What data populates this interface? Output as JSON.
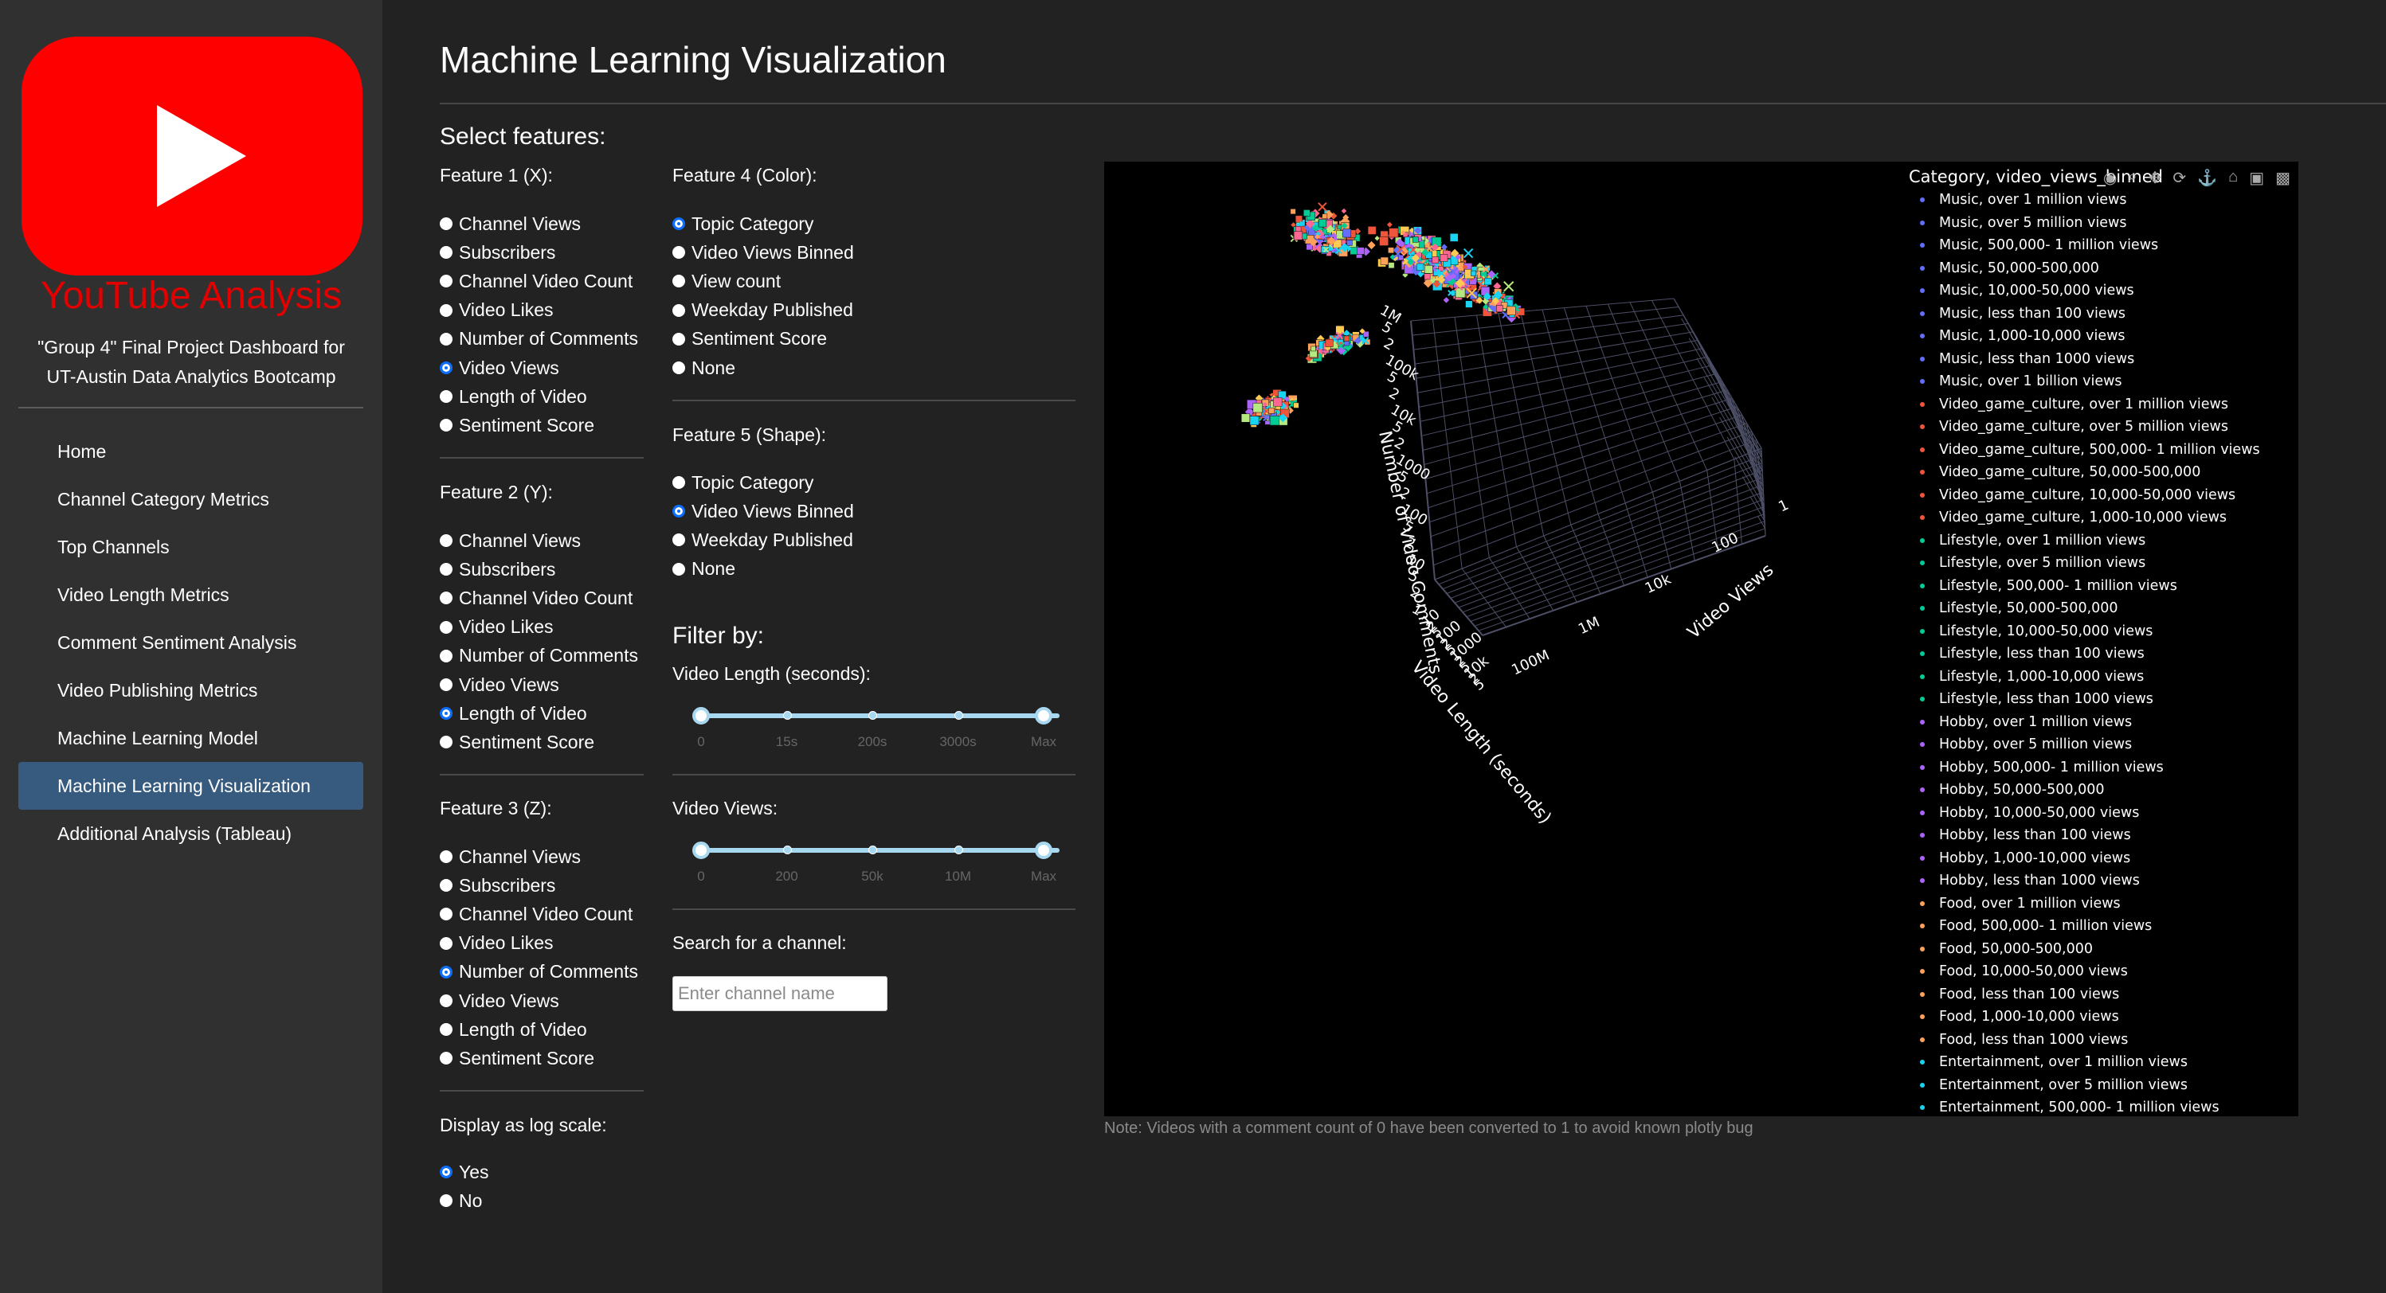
{
  "sidebar": {
    "brand": "YouTube Analysis",
    "tagline_line1": "\"Group 4\" Final Project Dashboard for",
    "tagline_line2": "UT-Austin Data Analytics Bootcamp",
    "logo_color": "#ff0000",
    "items": [
      {
        "label": "Home"
      },
      {
        "label": "Channel Category Metrics"
      },
      {
        "label": "Top Channels"
      },
      {
        "label": "Video Length Metrics"
      },
      {
        "label": "Comment Sentiment Analysis"
      },
      {
        "label": "Video Publishing Metrics"
      },
      {
        "label": "Machine Learning Model"
      },
      {
        "label": "Machine Learning Visualization",
        "active": true
      },
      {
        "label": "Additional Analysis (Tableau)"
      }
    ]
  },
  "main": {
    "title": "Machine Learning Visualization",
    "select_features": "Select features:",
    "feature1": {
      "label": "Feature 1 (X):",
      "options": [
        "Channel Views",
        "Subscribers",
        "Channel Video Count",
        "Video Likes",
        "Number of Comments",
        "Video Views",
        "Length of Video",
        "Sentiment Score"
      ],
      "selected": "Video Views"
    },
    "feature2": {
      "label": "Feature 2 (Y):",
      "options": [
        "Channel Views",
        "Subscribers",
        "Channel Video Count",
        "Video Likes",
        "Number of Comments",
        "Video Views",
        "Length of Video",
        "Sentiment Score"
      ],
      "selected": "Length of Video"
    },
    "feature3": {
      "label": "Feature 3 (Z):",
      "options": [
        "Channel Views",
        "Subscribers",
        "Channel Video Count",
        "Video Likes",
        "Number of Comments",
        "Video Views",
        "Length of Video",
        "Sentiment Score"
      ],
      "selected": "Number of Comments"
    },
    "log_scale": {
      "label": "Display as log scale:",
      "options": [
        "Yes",
        "No"
      ],
      "selected": "Yes"
    },
    "feature4": {
      "label": "Feature 4 (Color):",
      "options": [
        "Topic Category",
        "Video Views Binned",
        "View count",
        "Weekday Published",
        "Sentiment Score",
        "None"
      ],
      "selected": "Topic Category"
    },
    "feature5": {
      "label": "Feature 5 (Shape):",
      "options": [
        "Topic Category",
        "Video Views Binned",
        "Weekday Published",
        "None"
      ],
      "selected": "Video Views Binned"
    },
    "filter_by": "Filter by:",
    "length_filter": {
      "label": "Video Length (seconds):",
      "marks": [
        "0",
        "15s",
        "200s",
        "3000s",
        "Max"
      ],
      "range": [
        0,
        4
      ]
    },
    "views_filter": {
      "label": "Video Views:",
      "marks": [
        "0",
        "200",
        "50k",
        "10M",
        "Max"
      ],
      "range": [
        0,
        4
      ]
    },
    "search": {
      "label": "Search for a channel:",
      "placeholder": "Enter channel name",
      "value": ""
    },
    "note": "Note: Videos with a comment count of 0 have been converted to 1 to avoid known plotly bug"
  },
  "plot": {
    "modebar_icons": [
      "camera-icon",
      "zoom-icon",
      "pan-icon",
      "orbit-icon",
      "turntable-icon",
      "home-icon",
      "snapshot-icon",
      "plotly-logo-icon"
    ],
    "legend_title": "Category, video_views_binned",
    "legend": [
      {
        "label": "Music, over 1 million views",
        "color": "#636efa"
      },
      {
        "label": "Music, over 5 million views",
        "color": "#636efa"
      },
      {
        "label": "Music, 500,000- 1 million views",
        "color": "#636efa"
      },
      {
        "label": "Music, 50,000-500,000",
        "color": "#636efa"
      },
      {
        "label": "Music, 10,000-50,000 views",
        "color": "#636efa"
      },
      {
        "label": "Music, less than 100 views",
        "color": "#636efa"
      },
      {
        "label": "Music, 1,000-10,000 views",
        "color": "#636efa"
      },
      {
        "label": "Music, less than 1000 views",
        "color": "#636efa"
      },
      {
        "label": "Music, over 1 billion views",
        "color": "#636efa"
      },
      {
        "label": "Video_game_culture, over 1 million views",
        "color": "#ef553b"
      },
      {
        "label": "Video_game_culture, over 5 million views",
        "color": "#ef553b"
      },
      {
        "label": "Video_game_culture, 500,000- 1 million views",
        "color": "#ef553b"
      },
      {
        "label": "Video_game_culture, 50,000-500,000",
        "color": "#ef553b"
      },
      {
        "label": "Video_game_culture, 10,000-50,000 views",
        "color": "#ef553b"
      },
      {
        "label": "Video_game_culture, 1,000-10,000 views",
        "color": "#ef553b"
      },
      {
        "label": "Lifestyle, over 1 million views",
        "color": "#00cc96"
      },
      {
        "label": "Lifestyle, over 5 million views",
        "color": "#00cc96"
      },
      {
        "label": "Lifestyle, 500,000- 1 million views",
        "color": "#00cc96"
      },
      {
        "label": "Lifestyle, 50,000-500,000",
        "color": "#00cc96"
      },
      {
        "label": "Lifestyle, 10,000-50,000 views",
        "color": "#00cc96"
      },
      {
        "label": "Lifestyle, less than 100 views",
        "color": "#00cc96"
      },
      {
        "label": "Lifestyle, 1,000-10,000 views",
        "color": "#00cc96"
      },
      {
        "label": "Lifestyle, less than 1000 views",
        "color": "#00cc96"
      },
      {
        "label": "Hobby, over 1 million views",
        "color": "#ab63fa"
      },
      {
        "label": "Hobby, over 5 million views",
        "color": "#ab63fa"
      },
      {
        "label": "Hobby, 500,000- 1 million views",
        "color": "#ab63fa"
      },
      {
        "label": "Hobby, 50,000-500,000",
        "color": "#ab63fa"
      },
      {
        "label": "Hobby, 10,000-50,000 views",
        "color": "#ab63fa"
      },
      {
        "label": "Hobby, less than 100 views",
        "color": "#ab63fa"
      },
      {
        "label": "Hobby, 1,000-10,000 views",
        "color": "#ab63fa"
      },
      {
        "label": "Hobby, less than 1000 views",
        "color": "#ab63fa"
      },
      {
        "label": "Food, over 1 million views",
        "color": "#ffa15a"
      },
      {
        "label": "Food, 500,000- 1 million views",
        "color": "#ffa15a"
      },
      {
        "label": "Food, 50,000-500,000",
        "color": "#ffa15a"
      },
      {
        "label": "Food, 10,000-50,000 views",
        "color": "#ffa15a"
      },
      {
        "label": "Food, less than 100 views",
        "color": "#ffa15a"
      },
      {
        "label": "Food, 1,000-10,000 views",
        "color": "#ffa15a"
      },
      {
        "label": "Food, less than 1000 views",
        "color": "#ffa15a"
      },
      {
        "label": "Entertainment, over 1 million views",
        "color": "#19d3f3"
      },
      {
        "label": "Entertainment, over 5 million views",
        "color": "#19d3f3"
      },
      {
        "label": "Entertainment, 500,000- 1 million views",
        "color": "#19d3f3"
      }
    ],
    "axes": {
      "z_title": "Number of Video Comments",
      "y_title": "Video Length (seconds)",
      "x_title": "Video Views",
      "z_ticks": [
        "1M",
        "5",
        "2",
        "100k",
        "5",
        "2",
        "10k",
        "5",
        "2",
        "1000",
        "5",
        "2",
        "100",
        "5",
        "2",
        "10",
        "5",
        "2",
        "1"
      ],
      "y_ticks": [
        "10",
        "2",
        "5",
        "100",
        "2",
        "5",
        "1000",
        "2",
        "5",
        "10k",
        "2",
        "5"
      ],
      "x_ticks": [
        "1",
        "100",
        "10k",
        "1M",
        "100M"
      ]
    }
  }
}
